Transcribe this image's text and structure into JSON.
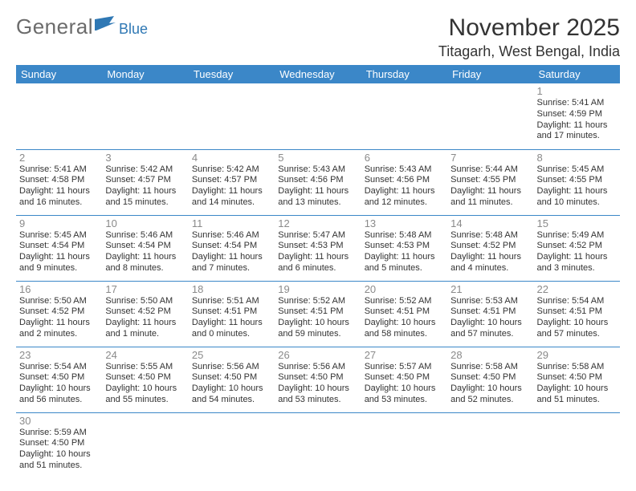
{
  "logo": {
    "general": "General",
    "blue": "Blue"
  },
  "header": {
    "title": "November 2025",
    "location": "Titagarh, West Bengal, India"
  },
  "colors": {
    "header_bg": "#3b87c8",
    "header_fg": "#ffffff",
    "rule": "#3b87c8",
    "daynum": "#8a8a8a",
    "text": "#333333",
    "logo_gray": "#6b6b6b",
    "logo_blue": "#2f78b4"
  },
  "days_of_week": [
    "Sunday",
    "Monday",
    "Tuesday",
    "Wednesday",
    "Thursday",
    "Friday",
    "Saturday"
  ],
  "grid": [
    [
      null,
      null,
      null,
      null,
      null,
      null,
      {
        "n": "1",
        "sr": "5:41 AM",
        "ss": "4:59 PM",
        "dl": "11 hours and 17 minutes."
      }
    ],
    [
      {
        "n": "2",
        "sr": "5:41 AM",
        "ss": "4:58 PM",
        "dl": "11 hours and 16 minutes."
      },
      {
        "n": "3",
        "sr": "5:42 AM",
        "ss": "4:57 PM",
        "dl": "11 hours and 15 minutes."
      },
      {
        "n": "4",
        "sr": "5:42 AM",
        "ss": "4:57 PM",
        "dl": "11 hours and 14 minutes."
      },
      {
        "n": "5",
        "sr": "5:43 AM",
        "ss": "4:56 PM",
        "dl": "11 hours and 13 minutes."
      },
      {
        "n": "6",
        "sr": "5:43 AM",
        "ss": "4:56 PM",
        "dl": "11 hours and 12 minutes."
      },
      {
        "n": "7",
        "sr": "5:44 AM",
        "ss": "4:55 PM",
        "dl": "11 hours and 11 minutes."
      },
      {
        "n": "8",
        "sr": "5:45 AM",
        "ss": "4:55 PM",
        "dl": "11 hours and 10 minutes."
      }
    ],
    [
      {
        "n": "9",
        "sr": "5:45 AM",
        "ss": "4:54 PM",
        "dl": "11 hours and 9 minutes."
      },
      {
        "n": "10",
        "sr": "5:46 AM",
        "ss": "4:54 PM",
        "dl": "11 hours and 8 minutes."
      },
      {
        "n": "11",
        "sr": "5:46 AM",
        "ss": "4:54 PM",
        "dl": "11 hours and 7 minutes."
      },
      {
        "n": "12",
        "sr": "5:47 AM",
        "ss": "4:53 PM",
        "dl": "11 hours and 6 minutes."
      },
      {
        "n": "13",
        "sr": "5:48 AM",
        "ss": "4:53 PM",
        "dl": "11 hours and 5 minutes."
      },
      {
        "n": "14",
        "sr": "5:48 AM",
        "ss": "4:52 PM",
        "dl": "11 hours and 4 minutes."
      },
      {
        "n": "15",
        "sr": "5:49 AM",
        "ss": "4:52 PM",
        "dl": "11 hours and 3 minutes."
      }
    ],
    [
      {
        "n": "16",
        "sr": "5:50 AM",
        "ss": "4:52 PM",
        "dl": "11 hours and 2 minutes."
      },
      {
        "n": "17",
        "sr": "5:50 AM",
        "ss": "4:52 PM",
        "dl": "11 hours and 1 minute."
      },
      {
        "n": "18",
        "sr": "5:51 AM",
        "ss": "4:51 PM",
        "dl": "11 hours and 0 minutes."
      },
      {
        "n": "19",
        "sr": "5:52 AM",
        "ss": "4:51 PM",
        "dl": "10 hours and 59 minutes."
      },
      {
        "n": "20",
        "sr": "5:52 AM",
        "ss": "4:51 PM",
        "dl": "10 hours and 58 minutes."
      },
      {
        "n": "21",
        "sr": "5:53 AM",
        "ss": "4:51 PM",
        "dl": "10 hours and 57 minutes."
      },
      {
        "n": "22",
        "sr": "5:54 AM",
        "ss": "4:51 PM",
        "dl": "10 hours and 57 minutes."
      }
    ],
    [
      {
        "n": "23",
        "sr": "5:54 AM",
        "ss": "4:50 PM",
        "dl": "10 hours and 56 minutes."
      },
      {
        "n": "24",
        "sr": "5:55 AM",
        "ss": "4:50 PM",
        "dl": "10 hours and 55 minutes."
      },
      {
        "n": "25",
        "sr": "5:56 AM",
        "ss": "4:50 PM",
        "dl": "10 hours and 54 minutes."
      },
      {
        "n": "26",
        "sr": "5:56 AM",
        "ss": "4:50 PM",
        "dl": "10 hours and 53 minutes."
      },
      {
        "n": "27",
        "sr": "5:57 AM",
        "ss": "4:50 PM",
        "dl": "10 hours and 53 minutes."
      },
      {
        "n": "28",
        "sr": "5:58 AM",
        "ss": "4:50 PM",
        "dl": "10 hours and 52 minutes."
      },
      {
        "n": "29",
        "sr": "5:58 AM",
        "ss": "4:50 PM",
        "dl": "10 hours and 51 minutes."
      }
    ],
    [
      {
        "n": "30",
        "sr": "5:59 AM",
        "ss": "4:50 PM",
        "dl": "10 hours and 51 minutes."
      },
      null,
      null,
      null,
      null,
      null,
      null
    ]
  ],
  "labels": {
    "sunrise": "Sunrise:",
    "sunset": "Sunset:",
    "daylight": "Daylight:"
  }
}
